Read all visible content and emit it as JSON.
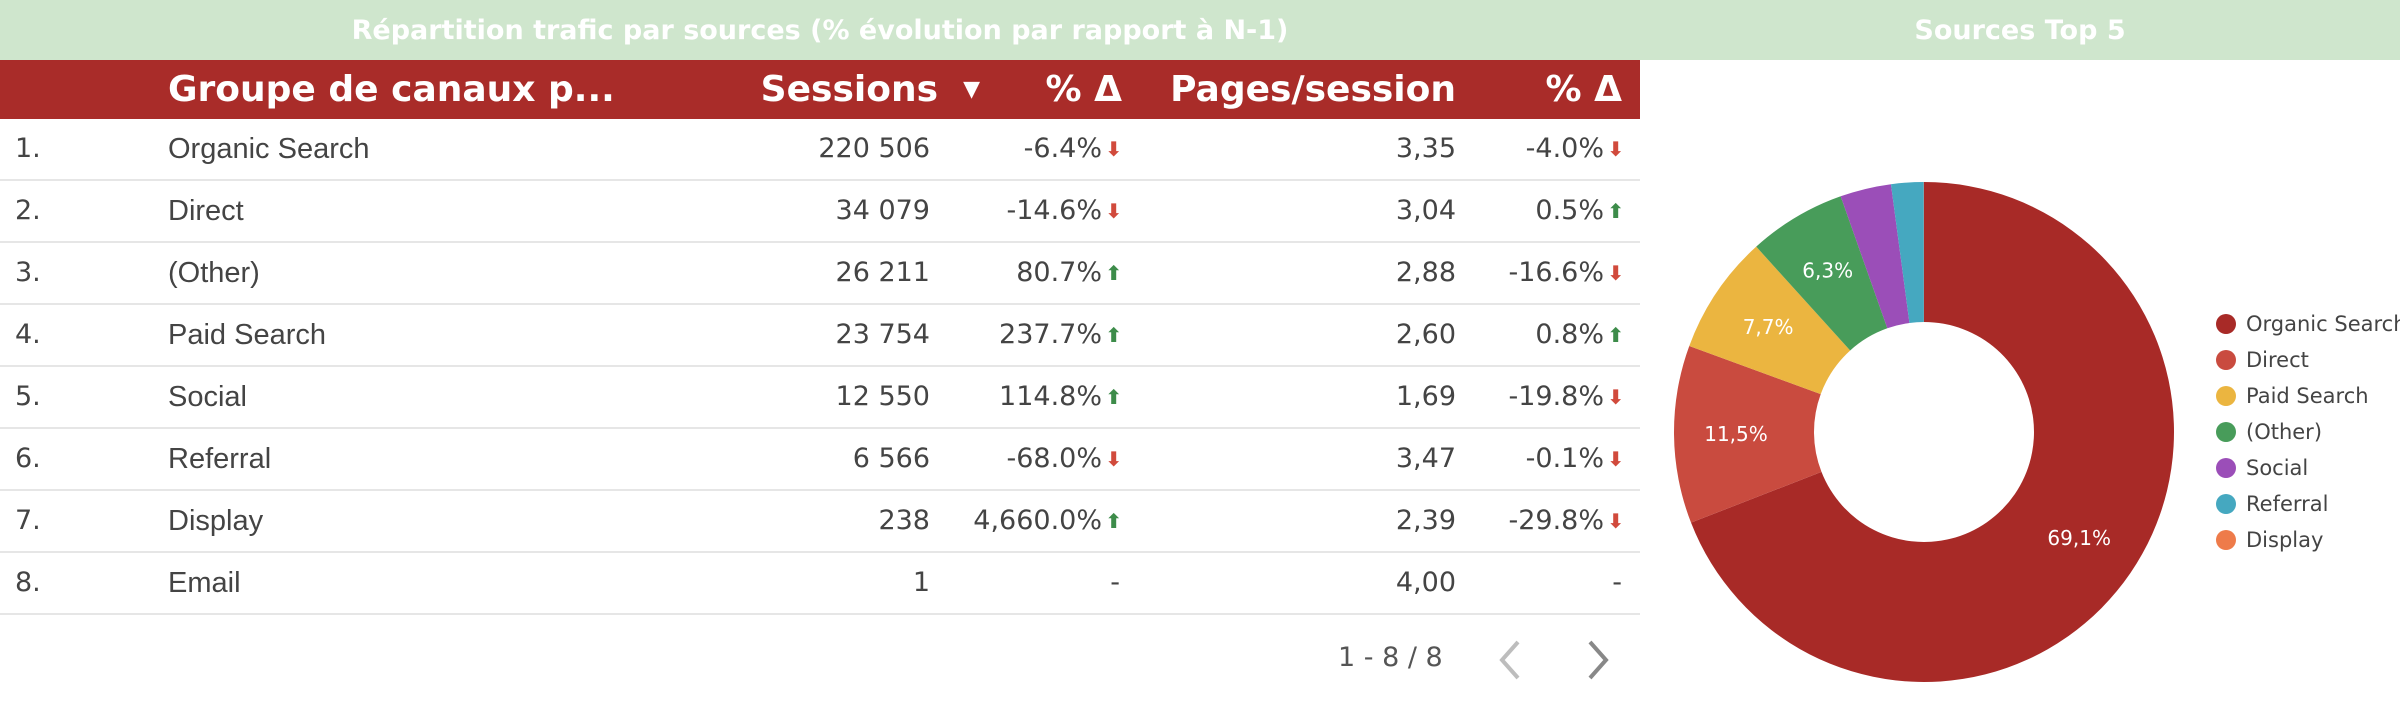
{
  "header_left_title": "Répartition trafic par sources (% évolution par rapport à N-1)",
  "header_right_title": "Sources Top 5",
  "table": {
    "columns": {
      "channel": "Groupe de canaux p...",
      "sessions": "Sessions",
      "sessions_sort_icon": "▼",
      "delta1": "% Δ",
      "pages": "Pages/session",
      "delta2": "% Δ"
    },
    "rows": [
      {
        "index": "1.",
        "channel": "Organic Search",
        "sessions": "220 506",
        "delta1": "-6.4%",
        "delta1_dir": "down",
        "pages": "3,35",
        "delta2": "-4.0%",
        "delta2_dir": "down"
      },
      {
        "index": "2.",
        "channel": "Direct",
        "sessions": "34 079",
        "delta1": "-14.6%",
        "delta1_dir": "down",
        "pages": "3,04",
        "delta2": "0.5%",
        "delta2_dir": "up"
      },
      {
        "index": "3.",
        "channel": "(Other)",
        "sessions": "26 211",
        "delta1": "80.7%",
        "delta1_dir": "up",
        "pages": "2,88",
        "delta2": "-16.6%",
        "delta2_dir": "down"
      },
      {
        "index": "4.",
        "channel": "Paid Search",
        "sessions": "23 754",
        "delta1": "237.7%",
        "delta1_dir": "up",
        "pages": "2,60",
        "delta2": "0.8%",
        "delta2_dir": "up"
      },
      {
        "index": "5.",
        "channel": "Social",
        "sessions": "12 550",
        "delta1": "114.8%",
        "delta1_dir": "up",
        "pages": "1,69",
        "delta2": "-19.8%",
        "delta2_dir": "down"
      },
      {
        "index": "6.",
        "channel": "Referral",
        "sessions": "6 566",
        "delta1": "-68.0%",
        "delta1_dir": "down",
        "pages": "3,47",
        "delta2": "-0.1%",
        "delta2_dir": "down"
      },
      {
        "index": "7.",
        "channel": "Display",
        "sessions": "238",
        "delta1": "4,660.0%",
        "delta1_dir": "up",
        "pages": "2,39",
        "delta2": "-29.8%",
        "delta2_dir": "down"
      },
      {
        "index": "8.",
        "channel": "Email",
        "sessions": "1",
        "delta1": "-",
        "delta1_dir": "none",
        "pages": "4,00",
        "delta2": "-",
        "delta2_dir": "none"
      }
    ],
    "arrow_icons": {
      "down": "⬇",
      "up": "⬆"
    }
  },
  "pagination": {
    "range": "1 - 8 / 8"
  },
  "colors": {
    "banner_bg": "#cfe6cd",
    "header_bg": "#a92c29",
    "delta_down": "#d14a3c",
    "delta_up": "#3d8c4a"
  },
  "chart_data": {
    "type": "pie",
    "title": "Sources Top 5",
    "donut": true,
    "legend_position": "right",
    "slices": [
      {
        "name": "Organic Search",
        "value": 69.1,
        "label": "69,1%",
        "color": "#a82a27"
      },
      {
        "name": "Direct",
        "value": 11.5,
        "label": "11,5%",
        "color": "#c94b3f"
      },
      {
        "name": "Paid Search",
        "value": 7.7,
        "label": "7,7%",
        "color": "#ebb540"
      },
      {
        "name": "(Other)",
        "value": 6.3,
        "label": "6,3%",
        "color": "#489c5a"
      },
      {
        "name": "Social",
        "value": 3.3,
        "label": "",
        "color": "#9b4eb8"
      },
      {
        "name": "Referral",
        "value": 2.1,
        "label": "",
        "color": "#45a8c0"
      },
      {
        "name": "Display",
        "value": 0.01,
        "label": "",
        "color": "#ee7b4a"
      }
    ]
  }
}
